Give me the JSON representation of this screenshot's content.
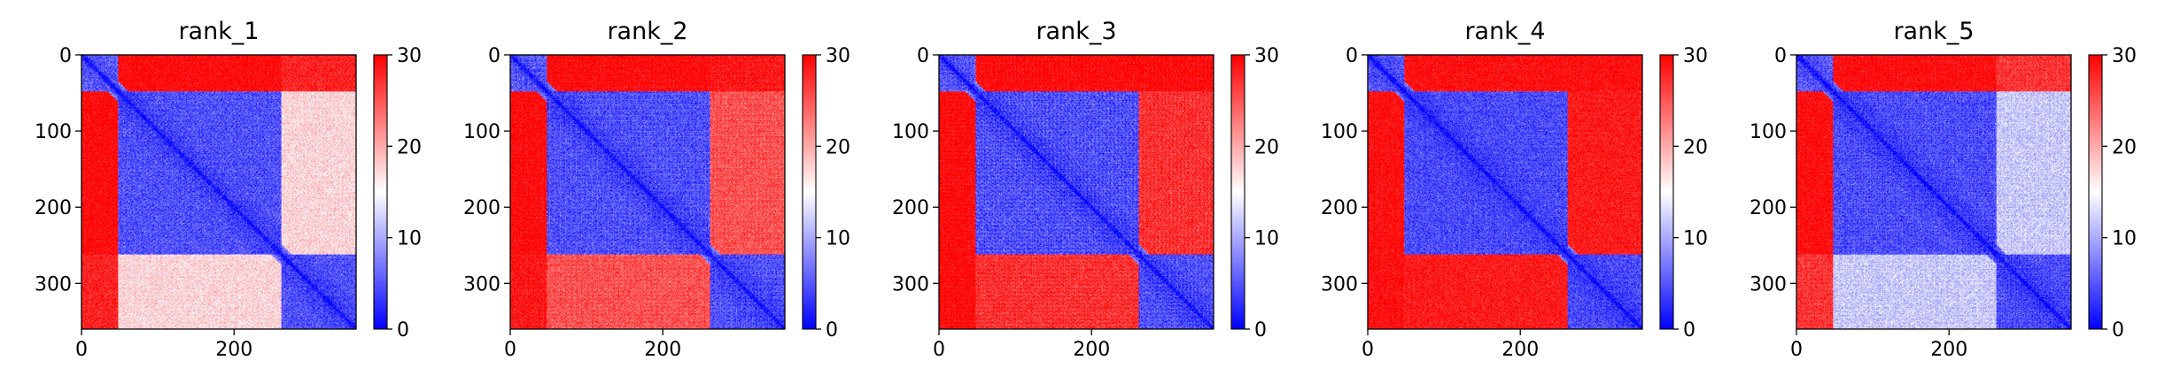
{
  "figure": {
    "background": "#ffffff"
  },
  "chart_data": [
    {
      "type": "heatmap",
      "title": "rank_1",
      "n": 360,
      "xlim": [
        0,
        360
      ],
      "ylim": [
        360,
        0
      ],
      "xticks": [
        0,
        200
      ],
      "yticks": [
        0,
        100,
        200,
        300
      ],
      "colorbar": {
        "min": 0,
        "max": 30,
        "ticks": [
          0,
          10,
          20,
          30
        ],
        "colormap": "bwr",
        "colors": [
          "#0000ff",
          "#ffffff",
          "#ff0000"
        ]
      },
      "domains": [
        [
          0,
          48
        ],
        [
          48,
          262
        ],
        [
          262,
          360
        ]
      ],
      "domain_contacts": [
        [
          4,
          30,
          28
        ],
        [
          30,
          3,
          17
        ],
        [
          28,
          17,
          3
        ]
      ]
    },
    {
      "type": "heatmap",
      "title": "rank_2",
      "n": 360,
      "xlim": [
        0,
        360
      ],
      "ylim": [
        360,
        0
      ],
      "xticks": [
        0,
        200
      ],
      "yticks": [
        0,
        100,
        200,
        300
      ],
      "colorbar": {
        "min": 0,
        "max": 30,
        "ticks": [
          0,
          10,
          20,
          30
        ],
        "colormap": "bwr",
        "colors": [
          "#0000ff",
          "#ffffff",
          "#ff0000"
        ]
      },
      "domains": [
        [
          0,
          48
        ],
        [
          48,
          262
        ],
        [
          262,
          360
        ]
      ],
      "domain_contacts": [
        [
          4,
          30,
          29
        ],
        [
          30,
          3,
          25
        ],
        [
          29,
          25,
          3
        ]
      ]
    },
    {
      "type": "heatmap",
      "title": "rank_3",
      "n": 360,
      "xlim": [
        0,
        360
      ],
      "ylim": [
        360,
        0
      ],
      "xticks": [
        0,
        200
      ],
      "yticks": [
        0,
        100,
        200,
        300
      ],
      "colorbar": {
        "min": 0,
        "max": 30,
        "ticks": [
          0,
          10,
          20,
          30
        ],
        "colormap": "bwr",
        "colors": [
          "#0000ff",
          "#ffffff",
          "#ff0000"
        ]
      },
      "domains": [
        [
          0,
          48
        ],
        [
          48,
          262
        ],
        [
          262,
          360
        ]
      ],
      "domain_contacts": [
        [
          4,
          30,
          30
        ],
        [
          30,
          3,
          27
        ],
        [
          30,
          27,
          3
        ]
      ]
    },
    {
      "type": "heatmap",
      "title": "rank_4",
      "n": 360,
      "xlim": [
        0,
        360
      ],
      "ylim": [
        360,
        0
      ],
      "xticks": [
        0,
        200
      ],
      "yticks": [
        0,
        100,
        200,
        300
      ],
      "colorbar": {
        "min": 0,
        "max": 30,
        "ticks": [
          0,
          10,
          20,
          30
        ],
        "colormap": "bwr",
        "colors": [
          "#0000ff",
          "#ffffff",
          "#ff0000"
        ]
      },
      "domains": [
        [
          0,
          48
        ],
        [
          48,
          262
        ],
        [
          262,
          360
        ]
      ],
      "domain_contacts": [
        [
          4,
          30,
          30
        ],
        [
          30,
          3,
          29
        ],
        [
          30,
          29,
          3
        ]
      ]
    },
    {
      "type": "heatmap",
      "title": "rank_5",
      "n": 360,
      "xlim": [
        0,
        360
      ],
      "ylim": [
        360,
        0
      ],
      "xticks": [
        0,
        200
      ],
      "yticks": [
        0,
        100,
        200,
        300
      ],
      "colorbar": {
        "min": 0,
        "max": 30,
        "ticks": [
          0,
          10,
          20,
          30
        ],
        "colormap": "bwr",
        "colors": [
          "#0000ff",
          "#ffffff",
          "#ff0000"
        ]
      },
      "domains": [
        [
          0,
          48
        ],
        [
          48,
          262
        ],
        [
          262,
          360
        ]
      ],
      "domain_contacts": [
        [
          4,
          30,
          27
        ],
        [
          30,
          3,
          12
        ],
        [
          27,
          12,
          3
        ]
      ]
    }
  ]
}
